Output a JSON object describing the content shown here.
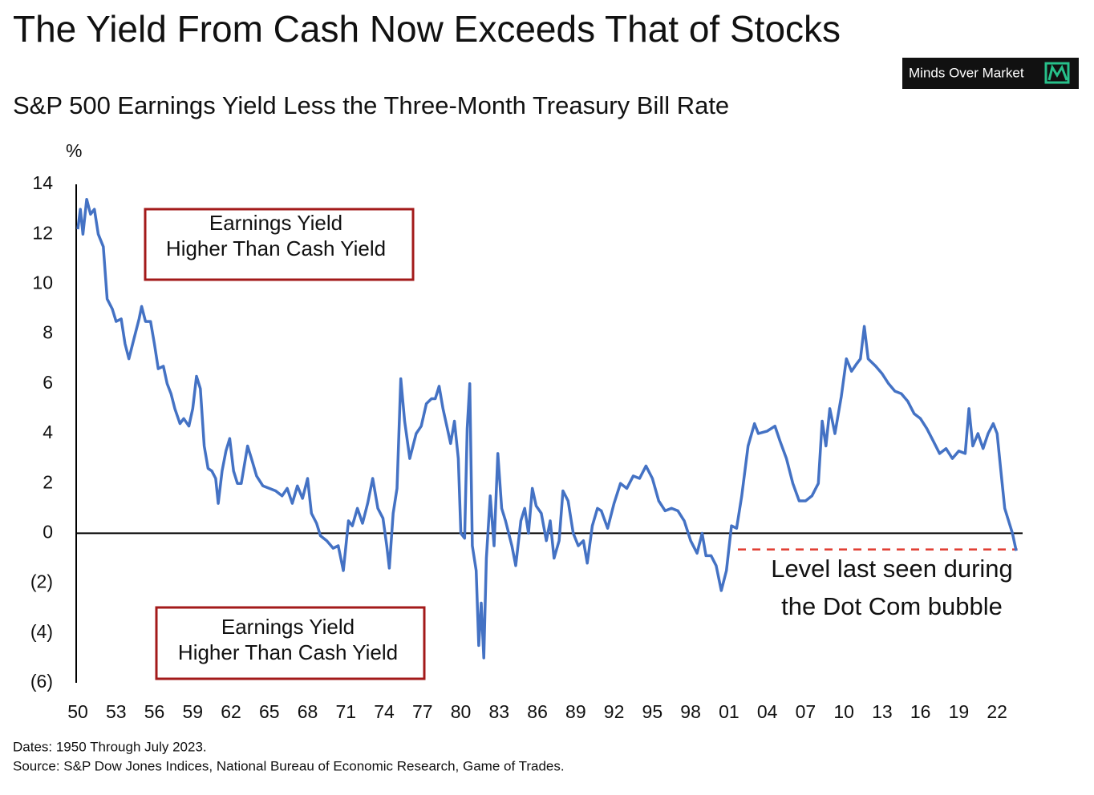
{
  "chart_data": {
    "type": "line",
    "title": "The Yield From Cash Now Exceeds That of Stocks",
    "subtitle": "S&P 500 Earnings Yield Less the Three-Month Treasury Bill Rate",
    "y_label": "%",
    "brand": "Minds Over Market",
    "footnotes": [
      "Dates: 1950 Through July 2023.",
      "Source: S&P Dow Jones Indices, National Bureau of Economic Research, Game of Trades."
    ],
    "color": "#4472c4",
    "xlim": [
      1950,
      2024
    ],
    "ylim": [
      -6,
      14
    ],
    "yticks": [
      14,
      12,
      10,
      8,
      6,
      4,
      2,
      0,
      {
        "value": -2,
        "label": "(2)"
      },
      {
        "value": -4,
        "label": "(4)"
      },
      {
        "value": -6,
        "label": "(6)"
      }
    ],
    "xticks": [
      {
        "value": 1950,
        "label": "50"
      },
      {
        "value": 1953,
        "label": "53"
      },
      {
        "value": 1956,
        "label": "56"
      },
      {
        "value": 1959,
        "label": "59"
      },
      {
        "value": 1962,
        "label": "62"
      },
      {
        "value": 1965,
        "label": "65"
      },
      {
        "value": 1968,
        "label": "68"
      },
      {
        "value": 1971,
        "label": "71"
      },
      {
        "value": 1974,
        "label": "74"
      },
      {
        "value": 1977,
        "label": "77"
      },
      {
        "value": 1980,
        "label": "80"
      },
      {
        "value": 1983,
        "label": "83"
      },
      {
        "value": 1986,
        "label": "86"
      },
      {
        "value": 1989,
        "label": "89"
      },
      {
        "value": 1992,
        "label": "92"
      },
      {
        "value": 1995,
        "label": "95"
      },
      {
        "value": 1998,
        "label": "98"
      },
      {
        "value": 2001,
        "label": "01"
      },
      {
        "value": 2004,
        "label": "04"
      },
      {
        "value": 2007,
        "label": "07"
      },
      {
        "value": 2010,
        "label": "10"
      },
      {
        "value": 2013,
        "label": "13"
      },
      {
        "value": 2016,
        "label": "16"
      },
      {
        "value": 2019,
        "label": "19"
      },
      {
        "value": 2022,
        "label": "22"
      }
    ],
    "x": [
      1950,
      1950.2,
      1950.4,
      1950.7,
      1951,
      1951.3,
      1951.6,
      1952,
      1952.3,
      1952.7,
      1953,
      1953.4,
      1953.7,
      1954,
      1954.4,
      1954.8,
      1955,
      1955.3,
      1955.7,
      1956,
      1956.3,
      1956.7,
      1957,
      1957.3,
      1957.6,
      1958,
      1958.3,
      1958.7,
      1959,
      1959.3,
      1959.6,
      1959.9,
      1960.2,
      1960.5,
      1960.8,
      1961,
      1961.3,
      1961.6,
      1961.9,
      1962.2,
      1962.5,
      1962.8,
      1963.3,
      1963.6,
      1964,
      1964.5,
      1965,
      1965.5,
      1966,
      1966.4,
      1966.8,
      1967.2,
      1967.6,
      1968,
      1968.3,
      1968.7,
      1969,
      1969.5,
      1970,
      1970.4,
      1970.8,
      1971.2,
      1971.5,
      1971.9,
      1972.3,
      1972.7,
      1973.1,
      1973.5,
      1973.9,
      1974.2,
      1974.4,
      1974.7,
      1975,
      1975.3,
      1975.6,
      1976,
      1976.5,
      1976.9,
      1977.3,
      1977.7,
      1978,
      1978.3,
      1978.6,
      1978.9,
      1979.2,
      1979.5,
      1979.8,
      1980,
      1980.3,
      1980.5,
      1980.7,
      1980.9,
      1981.2,
      1981.4,
      1981.6,
      1981.8,
      1982,
      1982.3,
      1982.6,
      1982.9,
      1983.2,
      1983.5,
      1984,
      1984.3,
      1984.7,
      1985,
      1985.3,
      1985.6,
      1985.9,
      1986.3,
      1986.7,
      1987,
      1987.3,
      1987.7,
      1988,
      1988.4,
      1988.8,
      1989.2,
      1989.6,
      1989.9,
      1990.3,
      1990.7,
      1991,
      1991.5,
      1992,
      1992.5,
      1993,
      1993.5,
      1994,
      1994.5,
      1995,
      1995.5,
      1996,
      1996.5,
      1997,
      1997.5,
      1998,
      1998.5,
      1998.9,
      1999.2,
      1999.6,
      2000,
      2000.4,
      2000.8,
      2001.2,
      2001.6,
      2002,
      2002.5,
      2003,
      2003.3,
      2004,
      2004.6,
      2005,
      2005.5,
      2006,
      2006.5,
      2007,
      2007.5,
      2008,
      2008.3,
      2008.6,
      2008.9,
      2009.3,
      2009.8,
      2010.2,
      2010.6,
      2011,
      2011.3,
      2011.6,
      2011.9,
      2012.5,
      2013,
      2013.5,
      2014,
      2014.5,
      2015,
      2015.5,
      2016,
      2016.5,
      2017,
      2017.5,
      2018,
      2018.5,
      2019,
      2019.5,
      2019.8,
      2020.1,
      2020.5,
      2020.9,
      2021.3,
      2021.7,
      2022,
      2022.3,
      2022.6,
      2022.9,
      2023.2,
      2023.5
    ],
    "values": [
      12.2,
      13.0,
      12.0,
      13.4,
      12.8,
      13.0,
      12.0,
      11.5,
      9.4,
      9.0,
      8.5,
      8.6,
      7.6,
      7.0,
      7.8,
      8.6,
      9.1,
      8.5,
      8.5,
      7.6,
      6.6,
      6.7,
      6.0,
      5.6,
      5.0,
      4.4,
      4.6,
      4.3,
      5.0,
      6.3,
      5.8,
      3.5,
      2.6,
      2.5,
      2.2,
      1.2,
      2.5,
      3.3,
      3.8,
      2.5,
      2.0,
      2.0,
      3.5,
      3.0,
      2.3,
      1.9,
      1.8,
      1.7,
      1.5,
      1.8,
      1.2,
      1.9,
      1.4,
      2.2,
      0.8,
      0.4,
      -0.1,
      -0.3,
      -0.6,
      -0.5,
      -1.5,
      0.5,
      0.3,
      1.0,
      0.4,
      1.2,
      2.2,
      1.0,
      0.6,
      -0.5,
      -1.4,
      0.8,
      1.8,
      6.2,
      4.5,
      3.0,
      4.0,
      4.3,
      5.2,
      5.4,
      5.4,
      5.9,
      5.0,
      4.3,
      3.6,
      4.5,
      3.0,
      0.0,
      -0.2,
      4.2,
      6.0,
      -0.5,
      -1.5,
      -4.5,
      -2.8,
      -5.0,
      -1.0,
      1.5,
      -0.5,
      3.2,
      1.0,
      0.5,
      -0.5,
      -1.3,
      0.5,
      1.0,
      0.0,
      1.8,
      1.1,
      0.8,
      -0.3,
      0.5,
      -1.0,
      -0.3,
      1.7,
      1.3,
      0.0,
      -0.5,
      -0.3,
      -1.2,
      0.3,
      1.0,
      0.9,
      0.2,
      1.2,
      2.0,
      1.8,
      2.3,
      2.2,
      2.7,
      2.2,
      1.3,
      0.9,
      1.0,
      0.9,
      0.5,
      -0.3,
      -0.8,
      0.0,
      -0.9,
      -0.9,
      -1.3,
      -2.3,
      -1.5,
      0.3,
      0.2,
      1.5,
      3.5,
      4.4,
      4.0,
      4.1,
      4.3,
      3.7,
      3.0,
      2.0,
      1.3,
      1.3,
      1.5,
      2.0,
      4.5,
      3.5,
      5.0,
      4.0,
      5.5,
      7.0,
      6.5,
      6.8,
      7.0,
      8.3,
      7.0,
      6.7,
      6.4,
      6.0,
      5.7,
      5.6,
      5.3,
      4.8,
      4.6,
      4.2,
      3.7,
      3.2,
      3.4,
      3.0,
      3.3,
      3.2,
      5.0,
      3.5,
      4.0,
      3.4,
      4.0,
      4.4,
      4.0,
      2.5,
      1.0,
      0.5,
      0.0,
      -0.7
    ],
    "reference_line": {
      "value": -0.65,
      "x": [
        2001.7,
        2023.6
      ],
      "color": "#e03c31"
    },
    "annotations": [
      {
        "lines": [
          "Earnings Yield",
          "Higher Than Cash Yield"
        ]
      },
      {
        "lines": [
          "Earnings Yield",
          "Higher Than Cash Yield"
        ]
      },
      {
        "lines": [
          "Level last seen during",
          "the Dot Com bubble"
        ]
      }
    ]
  }
}
